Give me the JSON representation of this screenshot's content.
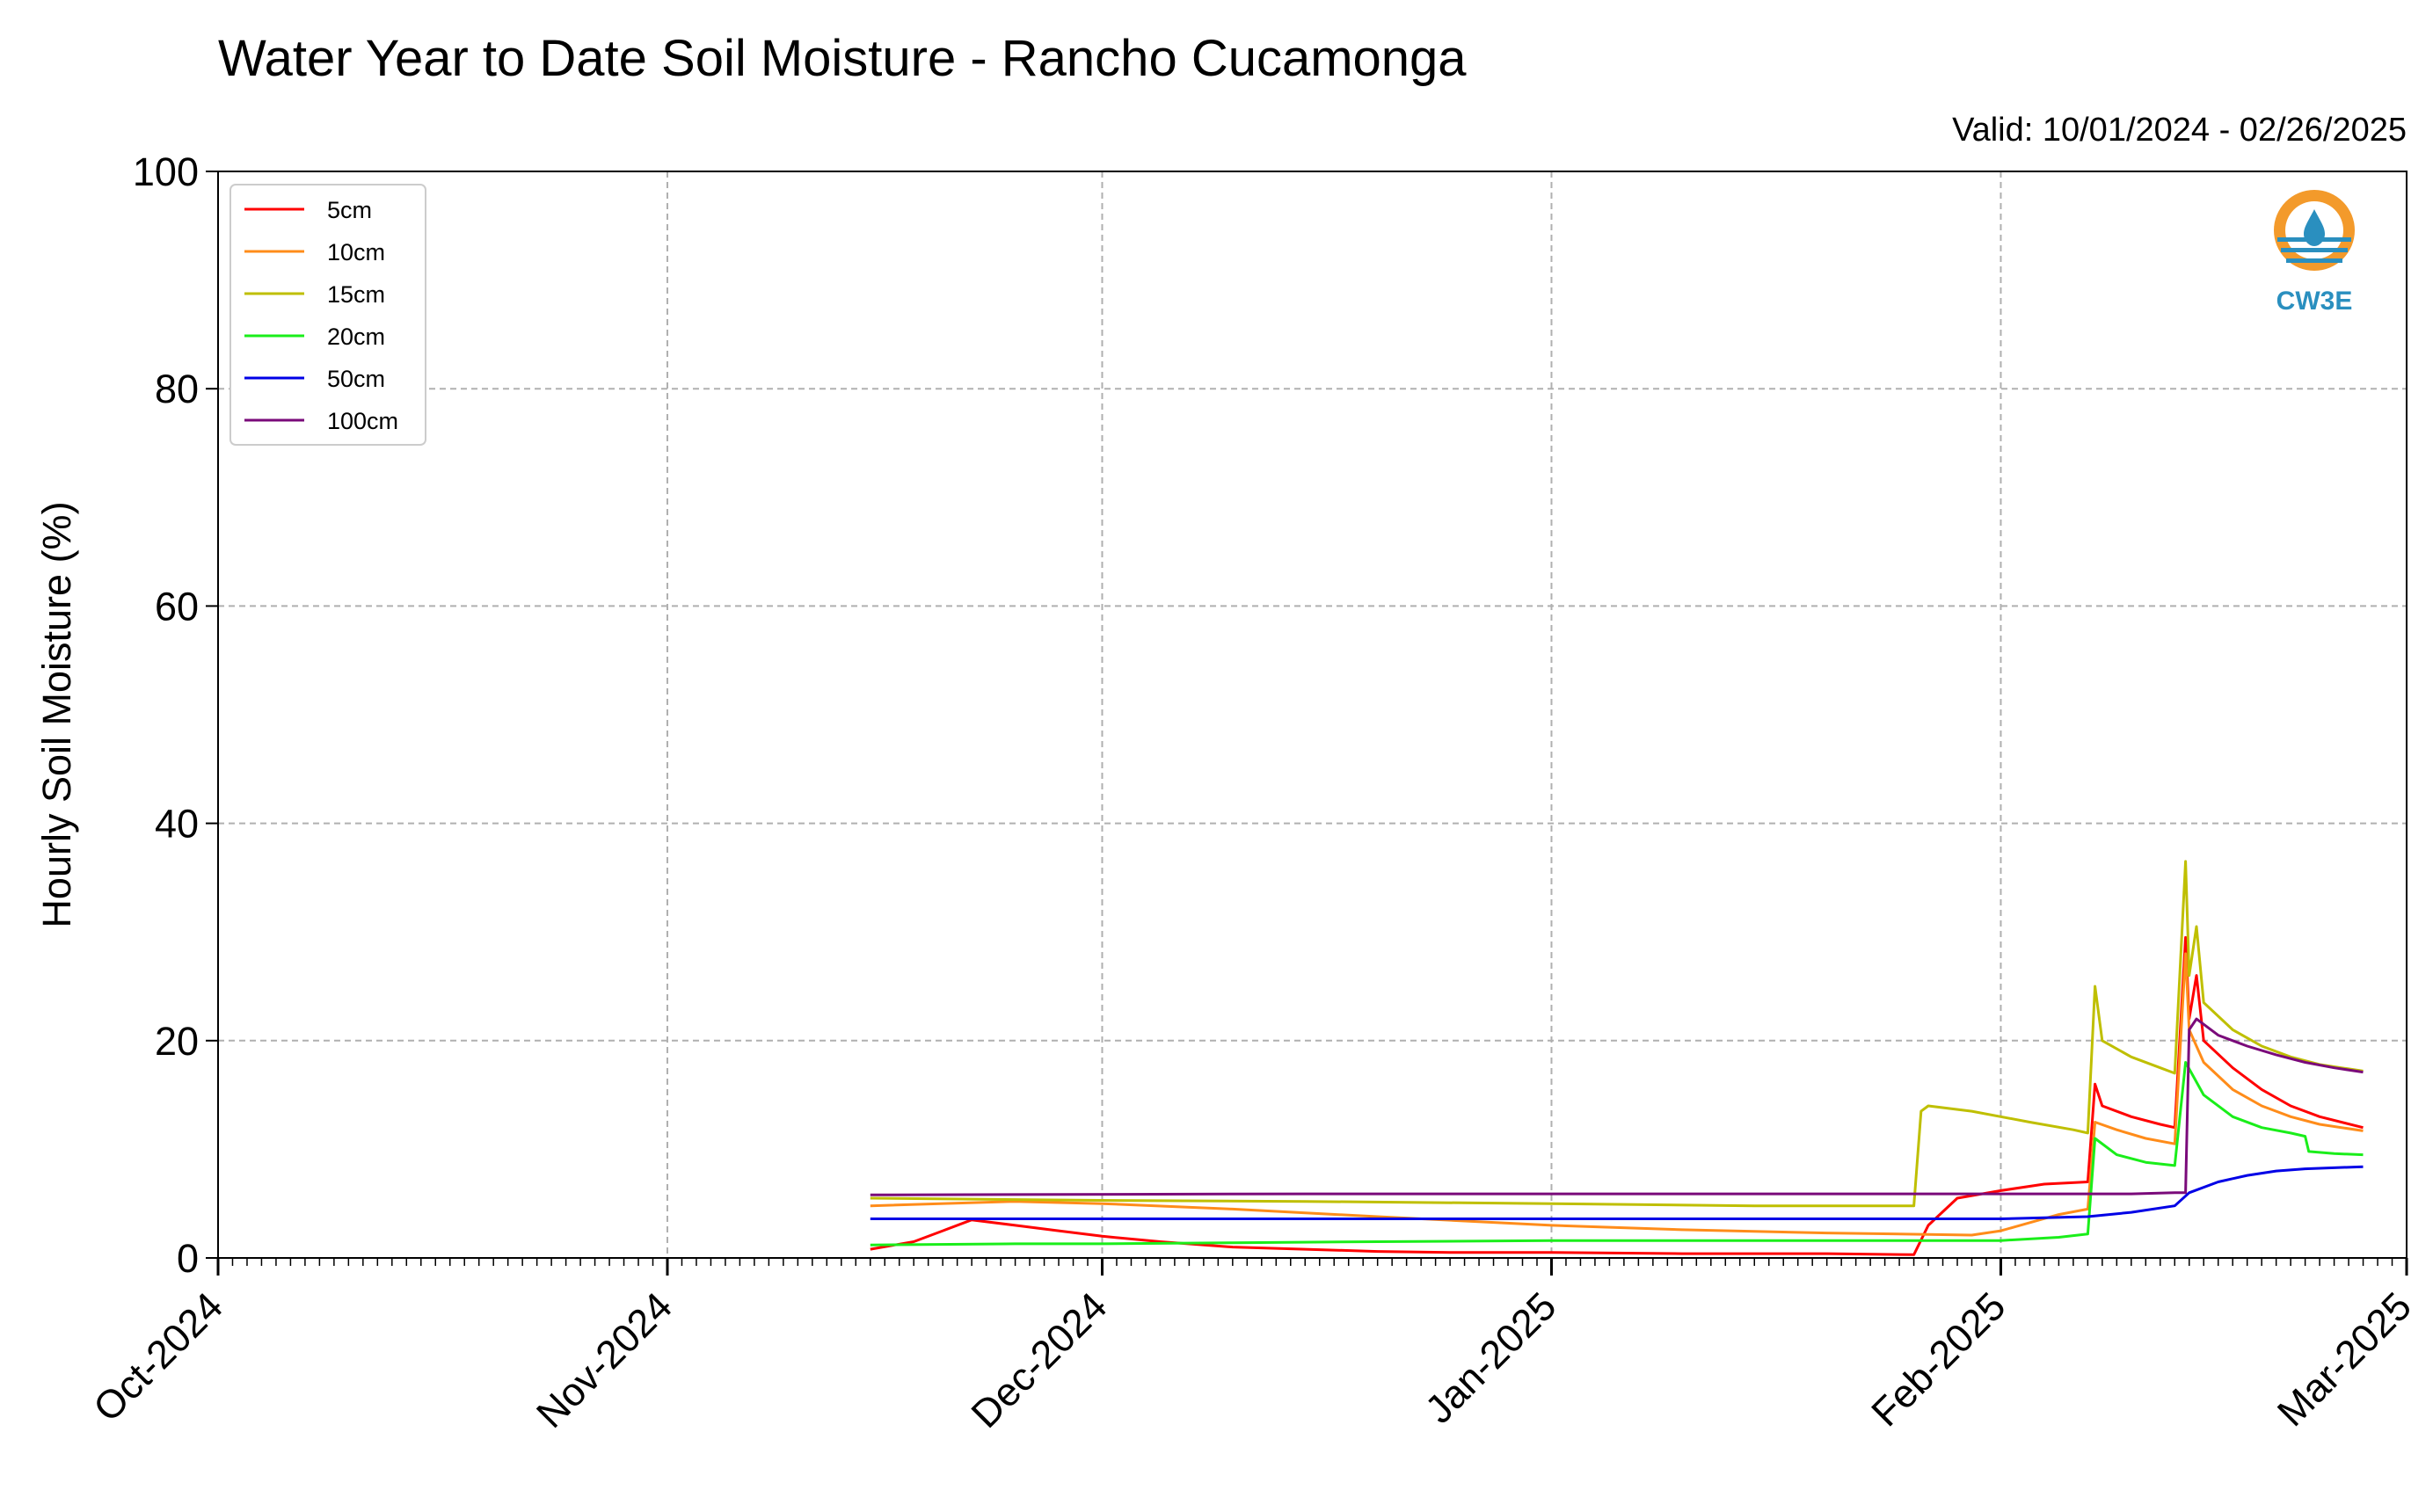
{
  "chart_data": {
    "type": "line",
    "title": "Water Year to Date Soil Moisture - Rancho Cucamonga",
    "subtitle": "Valid: 10/01/2024 - 02/26/2025",
    "xlabel": "",
    "ylabel": "Hourly Soil Moisture (%)",
    "xlim": [
      "2024-10-01",
      "2025-03-01"
    ],
    "ylim": [
      0,
      100
    ],
    "x_ticks": [
      "Oct-2024",
      "Nov-2024",
      "Dec-2024",
      "Jan-2025",
      "Feb-2025",
      "Mar-2025"
    ],
    "x_tick_dates": [
      "2024-10-01",
      "2024-11-01",
      "2024-12-01",
      "2025-01-01",
      "2025-02-01",
      "2025-03-01"
    ],
    "y_ticks": [
      0,
      20,
      40,
      60,
      80,
      100
    ],
    "grid": true,
    "legend_position": "top-left",
    "logo": {
      "text": "CW3E",
      "icon": "water-drop-logo-icon"
    },
    "series": [
      {
        "name": "5cm",
        "color": "#ff0000",
        "points": [
          [
            "2024-11-15",
            0.8
          ],
          [
            "2024-11-18",
            1.5
          ],
          [
            "2024-11-20",
            2.5
          ],
          [
            "2024-11-22",
            3.5
          ],
          [
            "2024-11-25",
            3.0
          ],
          [
            "2024-11-28",
            2.5
          ],
          [
            "2024-12-01",
            2.0
          ],
          [
            "2024-12-05",
            1.5
          ],
          [
            "2024-12-10",
            1.0
          ],
          [
            "2024-12-15",
            0.8
          ],
          [
            "2024-12-20",
            0.6
          ],
          [
            "2024-12-25",
            0.5
          ],
          [
            "2025-01-01",
            0.5
          ],
          [
            "2025-01-10",
            0.4
          ],
          [
            "2025-01-20",
            0.4
          ],
          [
            "2025-01-26",
            0.3
          ],
          [
            "2025-01-27",
            3.0
          ],
          [
            "2025-01-29",
            5.5
          ],
          [
            "2025-02-01",
            6.2
          ],
          [
            "2025-02-04",
            6.8
          ],
          [
            "2025-02-07",
            7.0
          ],
          [
            "2025-02-07T12",
            16.0
          ],
          [
            "2025-02-08",
            14.0
          ],
          [
            "2025-02-10",
            13.0
          ],
          [
            "2025-02-12",
            12.3
          ],
          [
            "2025-02-13",
            12.0
          ],
          [
            "2025-02-13T18",
            29.5
          ],
          [
            "2025-02-14",
            22.0
          ],
          [
            "2025-02-14T12",
            26.0
          ],
          [
            "2025-02-15",
            20.0
          ],
          [
            "2025-02-17",
            17.5
          ],
          [
            "2025-02-19",
            15.5
          ],
          [
            "2025-02-21",
            14.0
          ],
          [
            "2025-02-23",
            13.0
          ],
          [
            "2025-02-26",
            12.0
          ]
        ]
      },
      {
        "name": "10cm",
        "color": "#ff8c1a",
        "points": [
          [
            "2024-11-15",
            4.8
          ],
          [
            "2024-11-25",
            5.2
          ],
          [
            "2024-12-01",
            5.0
          ],
          [
            "2024-12-10",
            4.5
          ],
          [
            "2024-12-20",
            3.8
          ],
          [
            "2025-01-01",
            3.0
          ],
          [
            "2025-01-10",
            2.6
          ],
          [
            "2025-01-20",
            2.3
          ],
          [
            "2025-01-30",
            2.1
          ],
          [
            "2025-02-01",
            2.5
          ],
          [
            "2025-02-05",
            4.0
          ],
          [
            "2025-02-07",
            4.5
          ],
          [
            "2025-02-07T12",
            12.5
          ],
          [
            "2025-02-09",
            11.8
          ],
          [
            "2025-02-11",
            11.0
          ],
          [
            "2025-02-13",
            10.5
          ],
          [
            "2025-02-13T18",
            28.0
          ],
          [
            "2025-02-14",
            21.0
          ],
          [
            "2025-02-15",
            18.0
          ],
          [
            "2025-02-17",
            15.5
          ],
          [
            "2025-02-19",
            14.0
          ],
          [
            "2025-02-21",
            13.0
          ],
          [
            "2025-02-23",
            12.3
          ],
          [
            "2025-02-26",
            11.7
          ]
        ]
      },
      {
        "name": "15cm",
        "color": "#bfbf00",
        "points": [
          [
            "2024-11-15",
            5.5
          ],
          [
            "2024-12-01",
            5.3
          ],
          [
            "2024-12-15",
            5.2
          ],
          [
            "2025-01-01",
            5.0
          ],
          [
            "2025-01-15",
            4.8
          ],
          [
            "2025-01-26",
            4.8
          ],
          [
            "2025-01-26T12",
            13.5
          ],
          [
            "2025-01-27",
            14.0
          ],
          [
            "2025-01-30",
            13.5
          ],
          [
            "2025-02-03",
            12.5
          ],
          [
            "2025-02-06",
            11.8
          ],
          [
            "2025-02-07",
            11.5
          ],
          [
            "2025-02-07T12",
            25.0
          ],
          [
            "2025-02-08",
            20.0
          ],
          [
            "2025-02-10",
            18.5
          ],
          [
            "2025-02-12",
            17.5
          ],
          [
            "2025-02-13",
            17.0
          ],
          [
            "2025-02-13T18",
            36.5
          ],
          [
            "2025-02-14",
            26.0
          ],
          [
            "2025-02-14T12",
            30.5
          ],
          [
            "2025-02-15",
            23.5
          ],
          [
            "2025-02-17",
            21.0
          ],
          [
            "2025-02-19",
            19.5
          ],
          [
            "2025-02-21",
            18.5
          ],
          [
            "2025-02-23",
            17.8
          ],
          [
            "2025-02-26",
            17.2
          ]
        ]
      },
      {
        "name": "20cm",
        "color": "#1aee1a",
        "points": [
          [
            "2024-11-15",
            1.2
          ],
          [
            "2024-11-25",
            1.3
          ],
          [
            "2024-12-01",
            1.3
          ],
          [
            "2024-12-10",
            1.4
          ],
          [
            "2024-12-20",
            1.5
          ],
          [
            "2025-01-01",
            1.6
          ],
          [
            "2025-01-15",
            1.6
          ],
          [
            "2025-02-01",
            1.6
          ],
          [
            "2025-02-05",
            1.9
          ],
          [
            "2025-02-07",
            2.2
          ],
          [
            "2025-02-07T12",
            11.0
          ],
          [
            "2025-02-09",
            9.5
          ],
          [
            "2025-02-11",
            8.8
          ],
          [
            "2025-02-13",
            8.5
          ],
          [
            "2025-02-13T18",
            18.0
          ],
          [
            "2025-02-15",
            15.0
          ],
          [
            "2025-02-17",
            13.0
          ],
          [
            "2025-02-19",
            12.0
          ],
          [
            "2025-02-21",
            11.5
          ],
          [
            "2025-02-22",
            11.2
          ],
          [
            "2025-02-22T06",
            9.8
          ],
          [
            "2025-02-24",
            9.6
          ],
          [
            "2025-02-26",
            9.5
          ]
        ]
      },
      {
        "name": "50cm",
        "color": "#0000e6",
        "points": [
          [
            "2024-11-15",
            3.6
          ],
          [
            "2024-12-01",
            3.6
          ],
          [
            "2025-01-01",
            3.6
          ],
          [
            "2025-02-01",
            3.6
          ],
          [
            "2025-02-07",
            3.8
          ],
          [
            "2025-02-10",
            4.2
          ],
          [
            "2025-02-13",
            4.8
          ],
          [
            "2025-02-14",
            6.0
          ],
          [
            "2025-02-16",
            7.0
          ],
          [
            "2025-02-18",
            7.6
          ],
          [
            "2025-02-20",
            8.0
          ],
          [
            "2025-02-22",
            8.2
          ],
          [
            "2025-02-26",
            8.4
          ]
        ]
      },
      {
        "name": "100cm",
        "color": "#7a0a7a",
        "points": [
          [
            "2024-11-15",
            5.8
          ],
          [
            "2024-12-15",
            5.9
          ],
          [
            "2025-01-15",
            5.9
          ],
          [
            "2025-02-01",
            5.9
          ],
          [
            "2025-02-10",
            5.9
          ],
          [
            "2025-02-13",
            6.0
          ],
          [
            "2025-02-13T18",
            6.0
          ],
          [
            "2025-02-14",
            21.0
          ],
          [
            "2025-02-14T12",
            22.0
          ],
          [
            "2025-02-16",
            20.5
          ],
          [
            "2025-02-18",
            19.5
          ],
          [
            "2025-02-20",
            18.7
          ],
          [
            "2025-02-22",
            18.0
          ],
          [
            "2025-02-24",
            17.5
          ],
          [
            "2025-02-26",
            17.1
          ]
        ]
      }
    ]
  }
}
